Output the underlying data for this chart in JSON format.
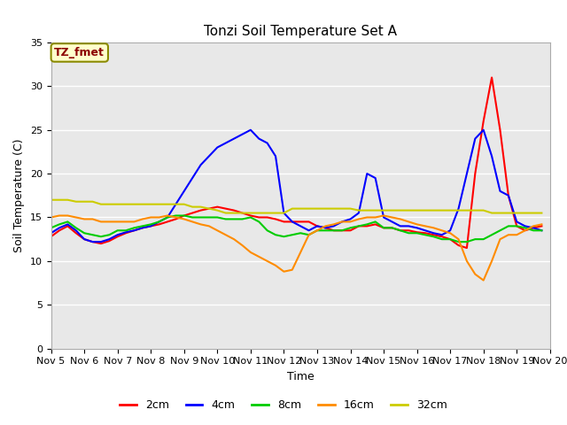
{
  "title": "Tonzi Soil Temperature Set A",
  "xlabel": "Time",
  "ylabel": "Soil Temperature (C)",
  "xlim": [
    5,
    20
  ],
  "ylim": [
    0,
    35
  ],
  "yticks": [
    0,
    5,
    10,
    15,
    20,
    25,
    30,
    35
  ],
  "xtick_labels": [
    "Nov 5",
    "Nov 6",
    "Nov 7",
    "Nov 8",
    "Nov 9",
    "Nov 10",
    "Nov 11",
    "Nov 12",
    "Nov 13",
    "Nov 14",
    "Nov 15",
    "Nov 16",
    "Nov 17",
    "Nov 18",
    "Nov 19",
    "Nov 20"
  ],
  "xtick_positions": [
    5,
    6,
    7,
    8,
    9,
    10,
    11,
    12,
    13,
    14,
    15,
    16,
    17,
    18,
    19,
    20
  ],
  "annotation_text": "TZ_fmet",
  "annotation_color": "#8B0000",
  "annotation_bg": "#FFFFCC",
  "annotation_border": "#8B8B00",
  "fig_bg": "#ffffff",
  "plot_bg": "#E8E8E8",
  "grid_color": "#ffffff",
  "series": {
    "2cm": {
      "color": "#FF0000",
      "x": [
        5.0,
        5.25,
        5.5,
        5.75,
        6.0,
        6.25,
        6.5,
        6.75,
        7.0,
        7.25,
        7.5,
        7.75,
        8.0,
        8.25,
        8.5,
        8.75,
        9.0,
        9.25,
        9.5,
        9.75,
        10.0,
        10.25,
        10.5,
        10.75,
        11.0,
        11.25,
        11.5,
        11.75,
        12.0,
        12.25,
        12.5,
        12.75,
        13.0,
        13.25,
        13.5,
        13.75,
        14.0,
        14.25,
        14.5,
        14.75,
        15.0,
        15.25,
        15.5,
        15.75,
        16.0,
        16.25,
        16.5,
        16.75,
        17.0,
        17.25,
        17.5,
        17.75,
        18.0,
        18.25,
        18.5,
        18.75,
        19.0,
        19.25,
        19.5,
        19.75
      ],
      "y": [
        12.8,
        13.5,
        14.0,
        13.2,
        12.5,
        12.2,
        12.0,
        12.3,
        12.8,
        13.2,
        13.5,
        13.8,
        14.0,
        14.2,
        14.5,
        14.8,
        15.2,
        15.5,
        15.8,
        16.0,
        16.2,
        16.0,
        15.8,
        15.5,
        15.2,
        15.0,
        15.0,
        14.8,
        14.5,
        14.5,
        14.5,
        14.5,
        14.0,
        13.8,
        13.5,
        13.5,
        13.5,
        14.0,
        14.0,
        14.2,
        13.8,
        13.8,
        13.5,
        13.5,
        13.3,
        13.2,
        13.0,
        12.8,
        12.5,
        11.8,
        11.5,
        20.0,
        26.0,
        31.0,
        25.0,
        17.5,
        14.0,
        13.5,
        13.8,
        14.0
      ]
    },
    "4cm": {
      "color": "#0000FF",
      "x": [
        5.0,
        5.25,
        5.5,
        5.75,
        6.0,
        6.25,
        6.5,
        6.75,
        7.0,
        7.25,
        7.5,
        7.75,
        8.0,
        8.25,
        8.5,
        8.75,
        9.0,
        9.25,
        9.5,
        9.75,
        10.0,
        10.25,
        10.5,
        10.75,
        11.0,
        11.25,
        11.5,
        11.75,
        12.0,
        12.25,
        12.5,
        12.75,
        13.0,
        13.25,
        13.5,
        13.75,
        14.0,
        14.25,
        14.5,
        14.75,
        15.0,
        15.25,
        15.5,
        15.75,
        16.0,
        16.25,
        16.5,
        16.75,
        17.0,
        17.25,
        17.5,
        17.75,
        18.0,
        18.25,
        18.5,
        18.75,
        19.0,
        19.25,
        19.5,
        19.75
      ],
      "y": [
        13.2,
        13.8,
        14.2,
        13.5,
        12.5,
        12.2,
        12.2,
        12.5,
        13.0,
        13.3,
        13.5,
        13.8,
        14.0,
        14.5,
        15.0,
        16.5,
        18.0,
        19.5,
        21.0,
        22.0,
        23.0,
        23.5,
        24.0,
        24.5,
        25.0,
        24.0,
        23.5,
        22.0,
        15.5,
        14.5,
        14.0,
        13.5,
        14.0,
        13.8,
        14.0,
        14.5,
        14.8,
        15.5,
        20.0,
        19.5,
        15.0,
        14.5,
        14.0,
        14.0,
        13.8,
        13.5,
        13.2,
        13.0,
        13.5,
        16.0,
        20.0,
        24.0,
        25.0,
        22.0,
        18.0,
        17.5,
        14.5,
        14.0,
        13.8,
        13.5
      ]
    },
    "8cm": {
      "color": "#00CC00",
      "x": [
        5.0,
        5.25,
        5.5,
        5.75,
        6.0,
        6.25,
        6.5,
        6.75,
        7.0,
        7.25,
        7.5,
        7.75,
        8.0,
        8.25,
        8.5,
        8.75,
        9.0,
        9.25,
        9.5,
        9.75,
        10.0,
        10.25,
        10.5,
        10.75,
        11.0,
        11.25,
        11.5,
        11.75,
        12.0,
        12.25,
        12.5,
        12.75,
        13.0,
        13.25,
        13.5,
        13.75,
        14.0,
        14.25,
        14.5,
        14.75,
        15.0,
        15.25,
        15.5,
        15.75,
        16.0,
        16.25,
        16.5,
        16.75,
        17.0,
        17.25,
        17.5,
        17.75,
        18.0,
        18.25,
        18.5,
        18.75,
        19.0,
        19.25,
        19.5,
        19.75
      ],
      "y": [
        13.8,
        14.2,
        14.5,
        13.8,
        13.2,
        13.0,
        12.8,
        13.0,
        13.5,
        13.5,
        13.8,
        14.0,
        14.2,
        14.5,
        15.0,
        15.2,
        15.2,
        15.0,
        15.0,
        15.0,
        15.0,
        14.8,
        14.8,
        14.8,
        15.0,
        14.5,
        13.5,
        13.0,
        12.8,
        13.0,
        13.2,
        13.0,
        13.5,
        13.5,
        13.5,
        13.5,
        13.8,
        14.0,
        14.2,
        14.5,
        13.8,
        13.8,
        13.5,
        13.2,
        13.2,
        13.0,
        12.8,
        12.5,
        12.5,
        12.2,
        12.2,
        12.5,
        12.5,
        13.0,
        13.5,
        14.0,
        14.0,
        13.8,
        13.5,
        13.5
      ]
    },
    "16cm": {
      "color": "#FF8C00",
      "x": [
        5.0,
        5.25,
        5.5,
        5.75,
        6.0,
        6.25,
        6.5,
        6.75,
        7.0,
        7.25,
        7.5,
        7.75,
        8.0,
        8.25,
        8.5,
        8.75,
        9.0,
        9.25,
        9.5,
        9.75,
        10.0,
        10.25,
        10.5,
        10.75,
        11.0,
        11.25,
        11.5,
        11.75,
        12.0,
        12.25,
        12.5,
        12.75,
        13.0,
        13.25,
        13.5,
        13.75,
        14.0,
        14.25,
        14.5,
        14.75,
        15.0,
        15.25,
        15.5,
        15.75,
        16.0,
        16.25,
        16.5,
        16.75,
        17.0,
        17.25,
        17.5,
        17.75,
        18.0,
        18.25,
        18.5,
        18.75,
        19.0,
        19.25,
        19.5,
        19.75
      ],
      "y": [
        15.0,
        15.2,
        15.2,
        15.0,
        14.8,
        14.8,
        14.5,
        14.5,
        14.5,
        14.5,
        14.5,
        14.8,
        15.0,
        15.0,
        15.2,
        15.0,
        14.8,
        14.5,
        14.2,
        14.0,
        13.5,
        13.0,
        12.5,
        11.8,
        11.0,
        10.5,
        10.0,
        9.5,
        8.8,
        9.0,
        11.0,
        13.0,
        13.5,
        14.0,
        14.2,
        14.5,
        14.5,
        14.8,
        15.0,
        15.0,
        15.2,
        15.0,
        14.8,
        14.5,
        14.2,
        14.0,
        13.8,
        13.5,
        13.2,
        12.5,
        10.0,
        8.5,
        7.8,
        10.0,
        12.5,
        13.0,
        13.0,
        13.5,
        14.0,
        14.2
      ]
    },
    "32cm": {
      "color": "#CCCC00",
      "x": [
        5.0,
        5.25,
        5.5,
        5.75,
        6.0,
        6.25,
        6.5,
        6.75,
        7.0,
        7.25,
        7.5,
        7.75,
        8.0,
        8.25,
        8.5,
        8.75,
        9.0,
        9.25,
        9.5,
        9.75,
        10.0,
        10.25,
        10.5,
        10.75,
        11.0,
        11.25,
        11.5,
        11.75,
        12.0,
        12.25,
        12.5,
        12.75,
        13.0,
        13.25,
        13.5,
        13.75,
        14.0,
        14.25,
        14.5,
        14.75,
        15.0,
        15.25,
        15.5,
        15.75,
        16.0,
        16.25,
        16.5,
        16.75,
        17.0,
        17.25,
        17.5,
        17.75,
        18.0,
        18.25,
        18.5,
        18.75,
        19.0,
        19.25,
        19.5,
        19.75
      ],
      "y": [
        17.0,
        17.0,
        17.0,
        16.8,
        16.8,
        16.8,
        16.5,
        16.5,
        16.5,
        16.5,
        16.5,
        16.5,
        16.5,
        16.5,
        16.5,
        16.5,
        16.5,
        16.2,
        16.2,
        16.0,
        15.8,
        15.5,
        15.5,
        15.5,
        15.5,
        15.5,
        15.5,
        15.5,
        15.5,
        16.0,
        16.0,
        16.0,
        16.0,
        16.0,
        16.0,
        16.0,
        16.0,
        15.8,
        15.8,
        15.8,
        15.8,
        15.8,
        15.8,
        15.8,
        15.8,
        15.8,
        15.8,
        15.8,
        15.8,
        15.8,
        15.8,
        15.8,
        15.8,
        15.5,
        15.5,
        15.5,
        15.5,
        15.5,
        15.5,
        15.5
      ]
    }
  },
  "legend_labels": [
    "2cm",
    "4cm",
    "8cm",
    "16cm",
    "32cm"
  ],
  "legend_colors": [
    "#FF0000",
    "#0000FF",
    "#00CC00",
    "#FF8C00",
    "#CCCC00"
  ],
  "title_fontsize": 11,
  "axis_label_fontsize": 9,
  "tick_fontsize": 8,
  "linewidth": 1.5
}
